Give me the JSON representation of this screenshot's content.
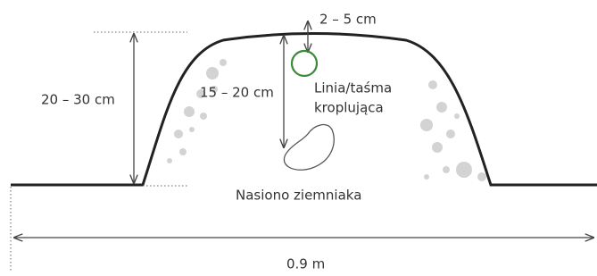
{
  "labels": {
    "top_depth": "2 – 5 cm",
    "ridge_height": "20 – 30 cm",
    "seed_depth": "15 – 20 cm",
    "drip_line": [
      "Linia/taśma",
      "kroplująca"
    ],
    "seed": "Nasiono ziemniaka",
    "width": "0.9 m"
  }
}
